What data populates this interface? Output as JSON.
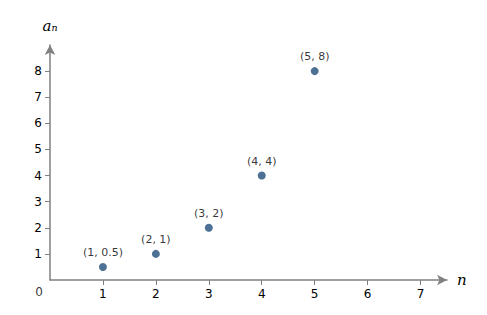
{
  "chart_data": {
    "type": "scatter",
    "x": [
      1,
      2,
      3,
      4,
      5
    ],
    "values": [
      0.5,
      1,
      2,
      4,
      8
    ],
    "value_labels": [
      "(1, 0.5)",
      "(2, 1)",
      "(3, 2)",
      "(4, 4)",
      "(5, 8)"
    ],
    "data_labels": true,
    "color": "#1f4e79",
    "xlabel": "n",
    "ylabel": "aₙ",
    "annotations": [
      {
        "text": "0",
        "x": 0,
        "y": 0
      }
    ],
    "xlim": [
      0,
      7.5
    ],
    "ylim": [
      0,
      9.0
    ],
    "xticks": [
      1,
      2,
      3,
      4,
      5,
      6,
      7
    ],
    "yticks": [
      1,
      2,
      3,
      4,
      5,
      6,
      7,
      8
    ],
    "grid": false
  }
}
